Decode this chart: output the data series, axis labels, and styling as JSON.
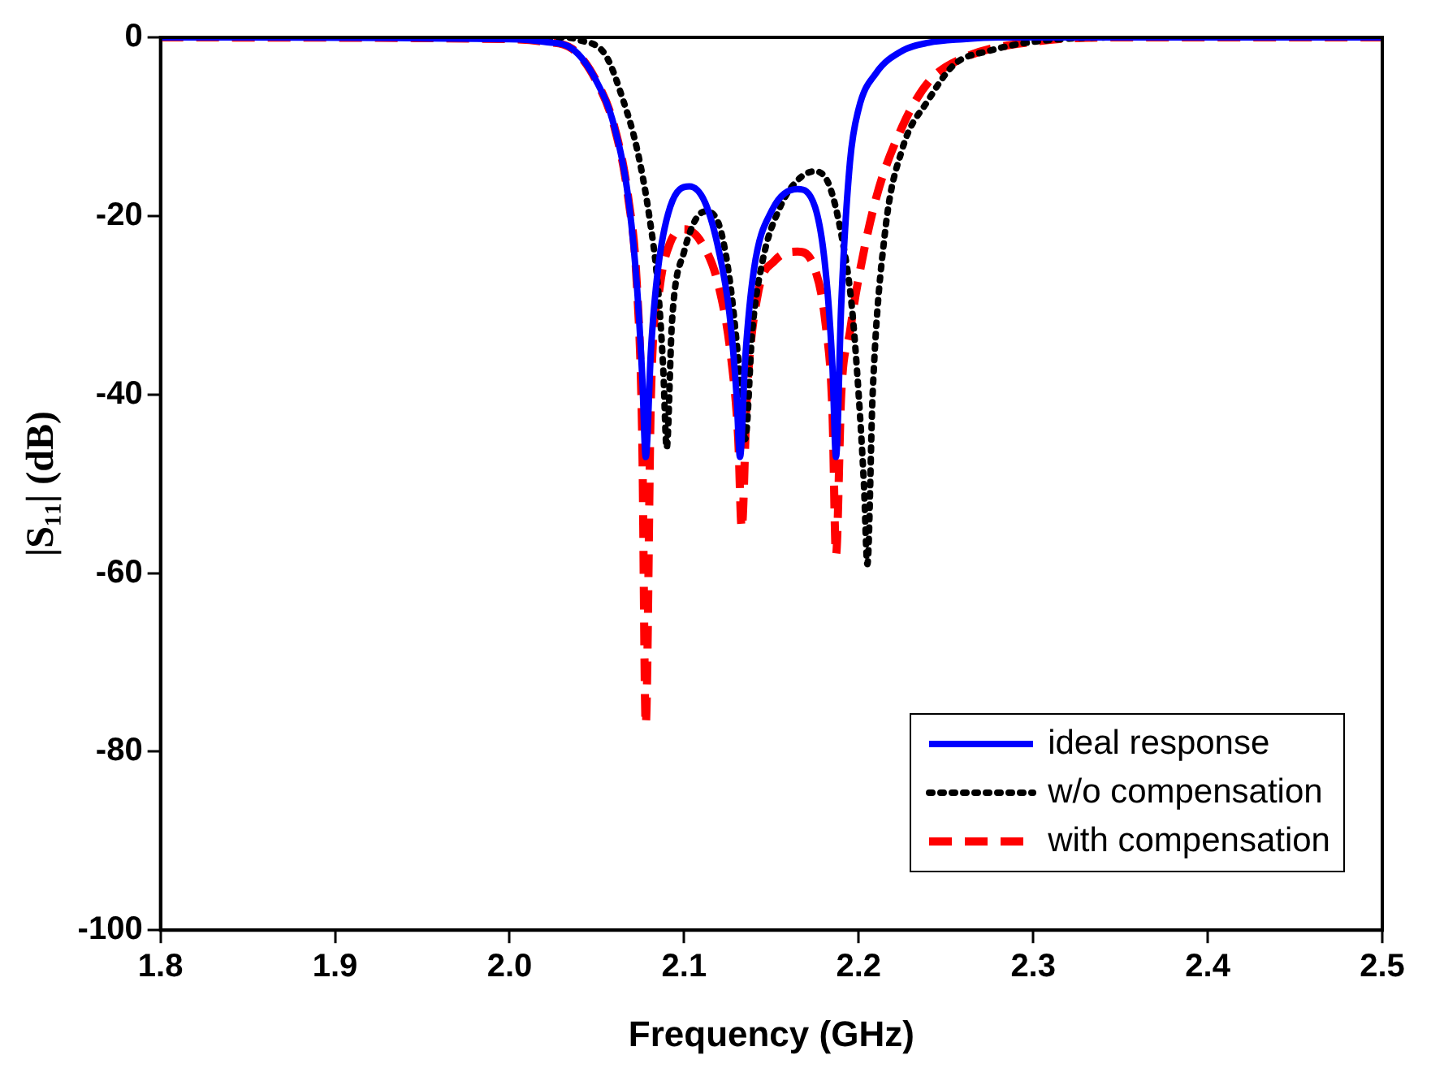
{
  "chart_data": {
    "type": "line",
    "xlabel": "Frequency (GHz)",
    "ylabel": "|S₁₁| (dB)",
    "xlim": [
      1.8,
      2.5
    ],
    "ylim": [
      -100,
      0
    ],
    "xticks": [
      1.8,
      1.9,
      {
        "value": 2,
        "label": "2.0"
      },
      2.1,
      2.2,
      2.3,
      2.4,
      2.5
    ],
    "yticks": [
      -100,
      -80,
      -60,
      -40,
      -20,
      0
    ],
    "grid": false,
    "legend": "bottom right",
    "marker": "none",
    "series": [
      {
        "name": "ideal response",
        "color": "#0000ff",
        "line_style": "solid",
        "x": [
          1.8,
          2.0,
          2.02,
          2.036,
          2.05,
          2.06,
          2.068,
          2.073,
          2.076,
          2.078,
          2.081,
          2.085,
          2.092,
          2.103,
          2.112,
          2.12,
          2.126,
          2.13,
          2.132,
          2.135,
          2.14,
          2.15,
          2.165,
          2.175,
          2.181,
          2.185,
          2.187,
          2.19,
          2.195,
          2.2,
          2.21,
          2.225,
          2.24,
          2.26,
          2.28,
          2.5
        ],
        "values": [
          0,
          -0.2,
          -0.5,
          -1.3,
          -5,
          -10,
          -18,
          -28,
          -38,
          -47,
          -35,
          -26,
          -19,
          -16.7,
          -18.5,
          -24,
          -31,
          -40,
          -47,
          -36,
          -26,
          -19.5,
          -17,
          -19,
          -26,
          -37,
          -47,
          -30,
          -14,
          -8,
          -4,
          -1.5,
          -0.6,
          -0.2,
          0,
          0
        ]
      },
      {
        "name": "w/o compensation",
        "color": "#000000",
        "line_style": "dotted",
        "x": [
          1.8,
          2.03,
          2.04,
          2.055,
          2.065,
          2.073,
          2.08,
          2.085,
          2.088,
          2.09,
          2.093,
          2.1,
          2.112,
          2.12,
          2.126,
          2.131,
          2.135,
          2.139,
          2.145,
          2.155,
          2.165,
          2.175,
          2.183,
          2.19,
          2.196,
          2.2,
          2.203,
          2.205,
          2.208,
          2.215,
          2.225,
          2.24,
          2.255,
          2.275,
          2.3,
          2.35,
          2.5
        ],
        "values": [
          0,
          0,
          -0.3,
          -2,
          -7,
          -12.5,
          -20,
          -28,
          -37,
          -46,
          -32,
          -24,
          -19.5,
          -21,
          -27,
          -36,
          -45,
          -33,
          -25,
          -19,
          -16,
          -15,
          -16.5,
          -22,
          -30,
          -40,
          -50,
          -59,
          -40,
          -22,
          -12.5,
          -7,
          -3,
          -1.5,
          -0.5,
          0,
          0
        ]
      },
      {
        "name": "with compensation",
        "color": "#ff0000",
        "line_style": "dashed",
        "x": [
          1.8,
          2.0,
          2.02,
          2.036,
          2.05,
          2.06,
          2.068,
          2.073,
          2.076,
          2.078,
          2.081,
          2.086,
          2.092,
          2.1,
          2.11,
          2.12,
          2.127,
          2.131,
          2.133,
          2.136,
          2.142,
          2.152,
          2.165,
          2.175,
          2.181,
          2.185,
          2.187,
          2.19,
          2.195,
          2.199,
          2.21,
          2.225,
          2.24,
          2.26,
          2.3,
          2.35,
          2.5
        ],
        "values": [
          0,
          -0.2,
          -0.5,
          -1.3,
          -5,
          -10,
          -18,
          -28,
          -45,
          -77,
          -40,
          -28,
          -23,
          -21.5,
          -23,
          -28,
          -36,
          -45,
          -55,
          -40,
          -29,
          -25,
          -24,
          -26,
          -32,
          -42,
          -58,
          -40,
          -33,
          -28,
          -18,
          -10,
          -5,
          -2.3,
          -0.5,
          0,
          0
        ]
      }
    ]
  }
}
